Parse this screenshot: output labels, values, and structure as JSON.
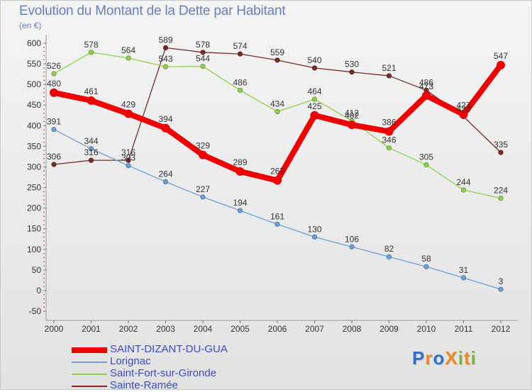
{
  "title": "Evolution du Montant de la Dette par Habitant",
  "subtitle": "(en €)",
  "logo": {
    "text": "ProXiti",
    "letters": [
      {
        "ch": "P",
        "color": "#2f73c9"
      },
      {
        "ch": "r",
        "color": "#e8892b"
      },
      {
        "ch": "o",
        "color": "#2f73c9"
      },
      {
        "ch": "X",
        "color": "#e8892b"
      },
      {
        "ch": "i",
        "color": "#7cb342"
      },
      {
        "ch": "t",
        "color": "#e8892b"
      },
      {
        "ch": "i",
        "color": "#7cb342"
      }
    ]
  },
  "chart_data": {
    "type": "line",
    "title": "Evolution du Montant de la Dette par Habitant",
    "ylabel": "(en €)",
    "xlabel": "",
    "ylim": [
      -50,
      600
    ],
    "yticks": [
      -50,
      0,
      50,
      100,
      150,
      200,
      250,
      300,
      350,
      400,
      450,
      500,
      550,
      600
    ],
    "categories": [
      "2000",
      "2001",
      "2002",
      "2003",
      "2004",
      "2005",
      "2006",
      "2007",
      "2008",
      "2009",
      "2010",
      "2011",
      "2012"
    ],
    "grid": false,
    "legend_position": "bottom-left",
    "series": [
      {
        "name": "Sainte-Ramée",
        "color": "#7a2a2a",
        "values": [
          306,
          316,
          316,
          589,
          578,
          574,
          559,
          540,
          530,
          521,
          486,
          422,
          335
        ]
      },
      {
        "name": "Saint-Fort-sur-Gironde",
        "color": "#8fd14f",
        "values": [
          526,
          578,
          564,
          543,
          544,
          486,
          434,
          464,
          412,
          346,
          305,
          244,
          224
        ]
      },
      {
        "name": "Lorignac",
        "color": "#6aa0d8",
        "values": [
          391,
          344,
          303,
          264,
          227,
          194,
          161,
          130,
          106,
          82,
          58,
          31,
          3
        ]
      },
      {
        "name": "SAINT-DIZANT-DU-GUA",
        "color": "#ee0000",
        "values": [
          480,
          461,
          429,
          394,
          329,
          289,
          267,
          425,
          402,
          386,
          473,
          427,
          547
        ]
      }
    ],
    "legend_order": [
      "SAINT-DIZANT-DU-GUA",
      "Lorignac",
      "Saint-Fort-sur-Gironde",
      "Sainte-Ramée"
    ]
  }
}
